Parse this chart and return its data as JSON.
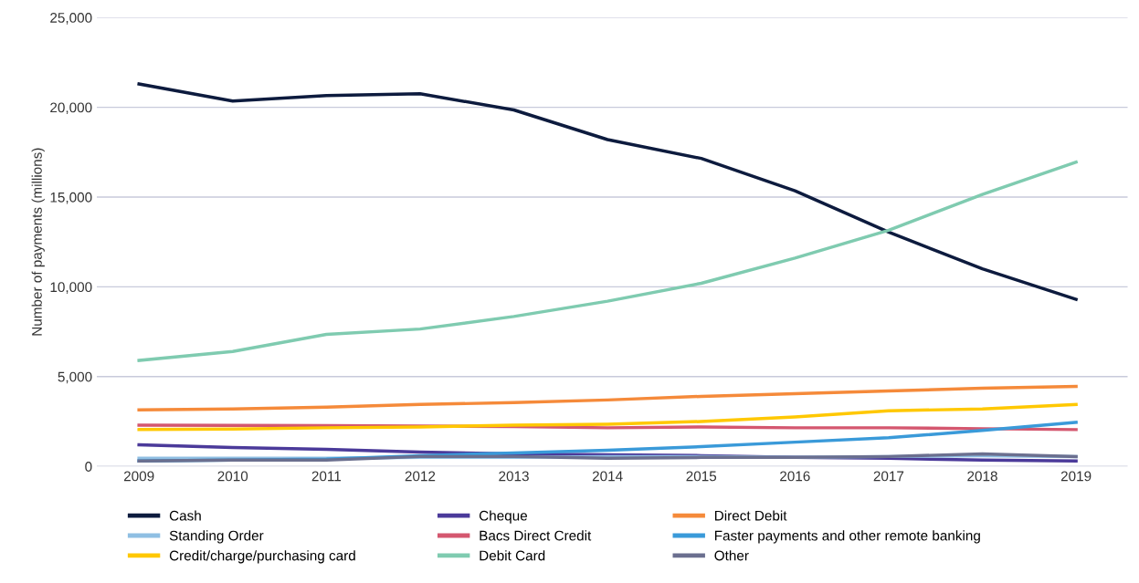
{
  "chart_data": {
    "type": "line",
    "ylabel": "Number of payments (millions)",
    "categories": [
      "2009",
      "2010",
      "2011",
      "2012",
      "2013",
      "2014",
      "2015",
      "2016",
      "2017",
      "2018",
      "2019"
    ],
    "series": [
      {
        "name": "Cash",
        "color": "#0d1b3e",
        "values": [
          21300,
          20350,
          20650,
          20750,
          19850,
          18200,
          17150,
          15350,
          13050,
          11000,
          9300
        ]
      },
      {
        "name": "Cheque",
        "color": "#4b3a9a",
        "values": [
          1200,
          1050,
          950,
          800,
          700,
          650,
          600,
          500,
          450,
          350,
          300
        ]
      },
      {
        "name": "Direct Debit",
        "color": "#f58a3a",
        "values": [
          3150,
          3200,
          3300,
          3450,
          3550,
          3700,
          3900,
          4050,
          4200,
          4350,
          4450
        ]
      },
      {
        "name": "Standing Order",
        "color": "#8fbfe3",
        "values": [
          450,
          450,
          450,
          500,
          500,
          550,
          550,
          500,
          550,
          600,
          550
        ]
      },
      {
        "name": "Bacs Direct Credit",
        "color": "#d4576f",
        "values": [
          2300,
          2280,
          2270,
          2250,
          2220,
          2150,
          2200,
          2150,
          2150,
          2100,
          2050
        ]
      },
      {
        "name": "Faster payments and other remote banking",
        "color": "#3a9ad9",
        "values": [
          300,
          350,
          400,
          600,
          750,
          900,
          1100,
          1350,
          1600,
          2000,
          2450
        ]
      },
      {
        "name": "Credit/charge/purchasing card",
        "color": "#ffc800",
        "values": [
          2050,
          2080,
          2150,
          2200,
          2300,
          2350,
          2500,
          2750,
          3100,
          3200,
          3450
        ]
      },
      {
        "name": "Debit Card",
        "color": "#7fcbb0",
        "values": [
          5900,
          6400,
          7350,
          7650,
          8350,
          9200,
          10200,
          11600,
          13150,
          15150,
          16950
        ]
      },
      {
        "name": "Other",
        "color": "#6b6f8f",
        "values": [
          300,
          350,
          350,
          550,
          550,
          450,
          500,
          500,
          550,
          700,
          550
        ]
      }
    ],
    "ylim": [
      0,
      25000
    ],
    "yticks": [
      {
        "value": 0,
        "label": "0"
      },
      {
        "value": 5000,
        "label": "5,000"
      },
      {
        "value": 10000,
        "label": "10,000"
      },
      {
        "value": 15000,
        "label": "15,000"
      },
      {
        "value": 20000,
        "label": "20,000"
      },
      {
        "value": 25000,
        "label": "25,000"
      }
    ],
    "grid": "y",
    "legend": "bottom",
    "marker": "none",
    "line_style": "solid"
  }
}
